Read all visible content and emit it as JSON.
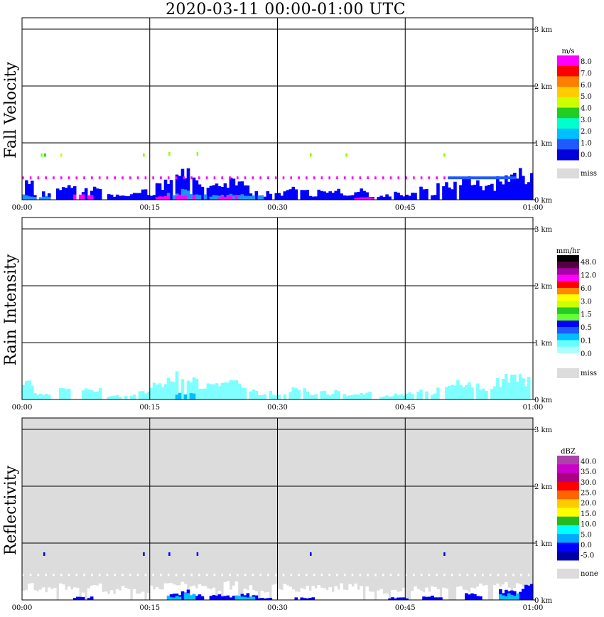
{
  "title": "2020-03-11   00:00-01:00 UTC",
  "x_ticks": [
    "00:00",
    "00:15",
    "00:30",
    "00:45",
    "01:00"
  ],
  "y_ticks": [
    "0 km",
    "1 km",
    "2 km",
    "3 km"
  ],
  "chart_data": [
    {
      "type": "heatmap",
      "ylabel": "Fall Velocity",
      "xlim": [
        "00:00",
        "01:00"
      ],
      "ylim_km": [
        0,
        3.2
      ],
      "background": "#ffffff",
      "colorbar": {
        "unit": "m/s",
        "labels": [
          "8.0",
          "7.0",
          "6.0",
          "5.0",
          "4.0",
          "3.0",
          "2.0",
          "1.0",
          "0.0"
        ],
        "colors": [
          "#ff00ff",
          "#ff0000",
          "#ff7f00",
          "#ffcc00",
          "#ccff00",
          "#22cc22",
          "#00ffcc",
          "#00bfff",
          "#1e5aff",
          "#0000dd"
        ],
        "missing_label": "miss",
        "missing_color": "#dcdcdc"
      },
      "layers": [
        {
          "color": "#0000ff",
          "extents": [
            [
              0.5,
              0.35
            ],
            [
              2,
              0.15
            ],
            [
              5,
              0.3
            ],
            [
              8,
              0.25
            ],
            [
              11,
              0.1
            ],
            [
              13,
              0.12
            ],
            [
              14,
              0.2
            ],
            [
              15,
              0.1
            ],
            [
              16,
              0.3
            ],
            [
              17,
              0.4
            ],
            [
              18,
              0.55
            ],
            [
              19,
              0.6
            ],
            [
              20,
              0.45
            ],
            [
              21,
              0.3
            ],
            [
              22,
              0.3
            ],
            [
              23,
              0.35
            ],
            [
              24,
              0.4
            ],
            [
              25,
              0.4
            ],
            [
              26,
              0.35
            ],
            [
              27,
              0.2
            ],
            [
              28,
              0.1
            ],
            [
              29,
              0.15
            ],
            [
              30,
              0.12
            ],
            [
              31,
              0.2
            ],
            [
              32,
              0.3
            ],
            [
              33,
              0.25
            ],
            [
              34,
              0.1
            ],
            [
              35,
              0.2
            ],
            [
              36,
              0.15
            ],
            [
              37,
              0.2
            ],
            [
              38,
              0.1
            ],
            [
              39,
              0.15
            ],
            [
              40,
              0.2
            ],
            [
              41,
              0.05
            ],
            [
              43,
              0.1
            ],
            [
              44,
              0.15
            ],
            [
              45,
              0.1
            ],
            [
              46,
              0.2
            ],
            [
              47,
              0.25
            ],
            [
              48,
              0.15
            ],
            [
              49,
              0.3
            ],
            [
              50,
              0.35
            ],
            [
              51,
              0.4
            ],
            [
              52,
              0.45
            ],
            [
              53,
              0.35
            ],
            [
              54,
              0.25
            ],
            [
              55,
              0.3
            ],
            [
              56,
              0.45
            ],
            [
              57,
              0.55
            ],
            [
              58,
              0.6
            ],
            [
              59,
              0.5
            ]
          ]
        },
        {
          "color": "#1e90ff",
          "extents": [
            [
              0.5,
              0.1
            ],
            [
              2,
              0.08
            ],
            [
              18,
              0.12
            ],
            [
              19,
              0.2
            ],
            [
              20,
              0.1
            ],
            [
              22,
              0.1
            ],
            [
              24,
              0.12
            ],
            [
              25,
              0.1
            ],
            [
              27,
              0.1
            ]
          ]
        },
        {
          "color": "#ff00ff",
          "extents": [
            [
              7,
              0.12
            ],
            [
              16,
              0.08
            ],
            [
              19,
              0.1
            ],
            [
              24,
              0.08
            ],
            [
              40,
              0.05
            ]
          ]
        },
        {
          "color": "#ff00ff",
          "band_km": [
            0.36,
            0.41
          ],
          "from": "00:00",
          "to": "00:50",
          "dashed": true
        },
        {
          "color": "#1e5aff",
          "band_km": [
            0.36,
            0.41
          ],
          "from": "00:50",
          "to": "00:58"
        }
      ],
      "points": [
        {
          "t": 2.2,
          "km": 0.78,
          "color": "#88ff00"
        },
        {
          "t": 2.6,
          "km": 0.78,
          "color": "#22cc22"
        },
        {
          "t": 4.5,
          "km": 0.78,
          "color": "#ccff00"
        },
        {
          "t": 14.2,
          "km": 0.78,
          "color": "#88ff00"
        },
        {
          "t": 17.2,
          "km": 0.8,
          "color": "#88ff00"
        },
        {
          "t": 20.5,
          "km": 0.8,
          "color": "#88ff00"
        },
        {
          "t": 33.8,
          "km": 0.78,
          "color": "#88ff00"
        },
        {
          "t": 38,
          "km": 0.78,
          "color": "#88ff00"
        },
        {
          "t": 49.5,
          "km": 0.78,
          "color": "#88ff00"
        }
      ]
    },
    {
      "type": "heatmap",
      "ylabel": "Rain Intensity",
      "xlim": [
        "00:00",
        "01:00"
      ],
      "ylim_km": [
        0,
        3.2
      ],
      "background": "#ffffff",
      "colorbar": {
        "unit": "mm/hr",
        "labels": [
          "48.0",
          "12.0",
          "6.0",
          "3.0",
          "1.5",
          "0.5",
          "0.1",
          "0.0"
        ],
        "colors": [
          "#000000",
          "#550044",
          "#aa00aa",
          "#ff00ff",
          "#ff0000",
          "#ff8800",
          "#ffff00",
          "#ccff00",
          "#22cc22",
          "#66ff33",
          "#0000ff",
          "#1e5aff",
          "#00bfff",
          "#66ffff",
          "#aaffff",
          "#ffffff"
        ],
        "missing_label": "miss",
        "missing_color": "#dcdcdc"
      },
      "layers": [
        {
          "color": "#7fffff",
          "extents": [
            [
              0.5,
              0.35
            ],
            [
              2,
              0.15
            ],
            [
              5,
              0.25
            ],
            [
              8,
              0.2
            ],
            [
              11,
              0.08
            ],
            [
              13,
              0.1
            ],
            [
              14,
              0.15
            ],
            [
              16,
              0.3
            ],
            [
              17,
              0.4
            ],
            [
              18,
              0.5
            ],
            [
              19,
              0.55
            ],
            [
              20,
              0.4
            ],
            [
              21,
              0.3
            ],
            [
              22,
              0.3
            ],
            [
              23,
              0.35
            ],
            [
              24,
              0.35
            ],
            [
              25,
              0.35
            ],
            [
              26,
              0.3
            ],
            [
              27,
              0.2
            ],
            [
              28,
              0.1
            ],
            [
              29,
              0.15
            ],
            [
              30,
              0.1
            ],
            [
              32,
              0.25
            ],
            [
              33,
              0.2
            ],
            [
              34,
              0.1
            ],
            [
              35,
              0.18
            ],
            [
              36,
              0.12
            ],
            [
              37,
              0.18
            ],
            [
              38,
              0.1
            ],
            [
              40,
              0.15
            ],
            [
              43,
              0.08
            ],
            [
              44,
              0.12
            ],
            [
              46,
              0.15
            ],
            [
              47,
              0.2
            ],
            [
              48,
              0.12
            ],
            [
              49,
              0.25
            ],
            [
              50,
              0.3
            ],
            [
              51,
              0.35
            ],
            [
              52,
              0.4
            ],
            [
              53,
              0.3
            ],
            [
              54,
              0.2
            ],
            [
              55,
              0.25
            ],
            [
              56,
              0.4
            ],
            [
              57,
              0.5
            ],
            [
              58,
              0.55
            ],
            [
              59,
              0.45
            ]
          ]
        },
        {
          "color": "#00bfff",
          "extents": [
            [
              19,
              0.12
            ]
          ]
        }
      ],
      "points": []
    },
    {
      "type": "heatmap",
      "ylabel": "Reflectivity",
      "xlim": [
        "00:00",
        "01:00"
      ],
      "ylim_km": [
        0,
        3.2
      ],
      "background": "#dcdcdc",
      "colorbar": {
        "unit": "dBZ",
        "labels": [
          "40.0",
          "35.0",
          "30.0",
          "25.0",
          "20.0",
          "15.0",
          "10.0",
          "5.0",
          "0.0",
          "-5.0"
        ],
        "colors": [
          "#aa44aa",
          "#cc00cc",
          "#aa0088",
          "#ff0000",
          "#ff6600",
          "#ffcc00",
          "#ffff00",
          "#22bb22",
          "#00ffff",
          "#00aaff",
          "#0000ff",
          "#0000aa"
        ],
        "missing_label": "none",
        "missing_color": "#dcdcdc"
      },
      "layers": [
        {
          "color": "#ffffff",
          "extents": [
            [
              0.5,
              0.3
            ],
            [
              2,
              0.25
            ],
            [
              4,
              0.3
            ],
            [
              6,
              0.25
            ],
            [
              8,
              0.3
            ],
            [
              10,
              0.2
            ],
            [
              12,
              0.25
            ],
            [
              14,
              0.2
            ],
            [
              16,
              0.3
            ],
            [
              18,
              0.35
            ],
            [
              20,
              0.3
            ],
            [
              22,
              0.3
            ],
            [
              24,
              0.35
            ],
            [
              26,
              0.3
            ],
            [
              28,
              0.25
            ],
            [
              30,
              0.3
            ],
            [
              32,
              0.25
            ],
            [
              34,
              0.3
            ],
            [
              36,
              0.25
            ],
            [
              38,
              0.3
            ],
            [
              40,
              0.25
            ],
            [
              42,
              0.2
            ],
            [
              44,
              0.25
            ],
            [
              46,
              0.3
            ],
            [
              48,
              0.25
            ],
            [
              50,
              0.3
            ],
            [
              52,
              0.25
            ],
            [
              54,
              0.3
            ],
            [
              56,
              0.35
            ],
            [
              58,
              0.3
            ],
            [
              59.5,
              0.25
            ]
          ]
        },
        {
          "color": "#ffffff",
          "band_km": [
            0.42,
            0.46
          ],
          "from": "00:00",
          "to": "01:00",
          "dashed": true
        },
        {
          "color": "#0000ff",
          "extents": [
            [
              7,
              0.06
            ],
            [
              18,
              0.15
            ],
            [
              19,
              0.25
            ],
            [
              20,
              0.1
            ],
            [
              23,
              0.1
            ],
            [
              24,
              0.08
            ],
            [
              25,
              0.1
            ],
            [
              26,
              0.12
            ],
            [
              27,
              0.15
            ],
            [
              28,
              0.05
            ],
            [
              33,
              0.05
            ],
            [
              44,
              0.05
            ],
            [
              48,
              0.08
            ],
            [
              53,
              0.12
            ],
            [
              57,
              0.2
            ],
            [
              58,
              0.25
            ],
            [
              59,
              0.3
            ]
          ]
        },
        {
          "color": "#00bfff",
          "extents": [
            [
              18,
              0.08
            ],
            [
              19,
              0.15
            ],
            [
              26,
              0.08
            ],
            [
              57,
              0.12
            ]
          ]
        }
      ],
      "points": [
        {
          "t": 2.5,
          "km": 0.8,
          "color": "#0000ff"
        },
        {
          "t": 14.2,
          "km": 0.8,
          "color": "#0000ff"
        },
        {
          "t": 17.2,
          "km": 0.8,
          "color": "#0000ff"
        },
        {
          "t": 20.5,
          "km": 0.8,
          "color": "#0000ff"
        },
        {
          "t": 33.8,
          "km": 0.8,
          "color": "#0000ff"
        },
        {
          "t": 49.5,
          "km": 0.8,
          "color": "#0000ff"
        }
      ]
    }
  ]
}
